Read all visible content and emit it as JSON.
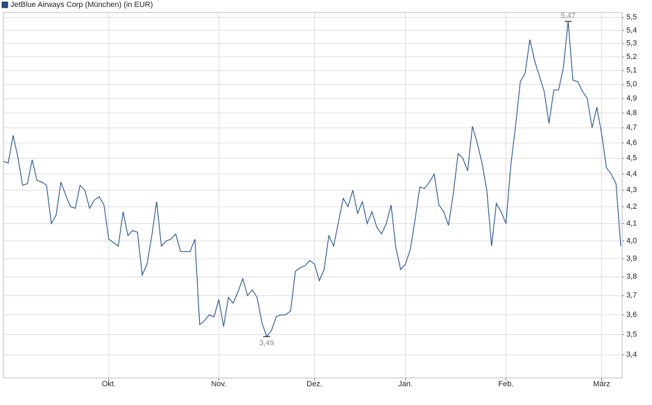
{
  "chart_data": {
    "type": "line",
    "categories": [
      null,
      null,
      null,
      null,
      null,
      null,
      null,
      null,
      null,
      null,
      null,
      null,
      null,
      null,
      null,
      null,
      null,
      null,
      null,
      null,
      null,
      null,
      "Okt.",
      null,
      null,
      null,
      null,
      null,
      null,
      null,
      null,
      null,
      null,
      null,
      null,
      null,
      null,
      null,
      null,
      null,
      null,
      null,
      null,
      null,
      null,
      "Nov.",
      null,
      null,
      null,
      null,
      null,
      null,
      null,
      null,
      null,
      null,
      null,
      null,
      null,
      null,
      null,
      null,
      null,
      null,
      null,
      "Dez.",
      null,
      null,
      null,
      null,
      null,
      null,
      null,
      null,
      null,
      null,
      null,
      null,
      null,
      null,
      null,
      null,
      null,
      null,
      "Jan.",
      null,
      null,
      null,
      null,
      null,
      null,
      null,
      null,
      null,
      null,
      null,
      null,
      null,
      null,
      null,
      null,
      null,
      null,
      null,
      null,
      "Feb.",
      null,
      null,
      null,
      null,
      null,
      null,
      null,
      null,
      null,
      null,
      null,
      null,
      null,
      null,
      null,
      null,
      null,
      null,
      null,
      "März",
      null,
      null,
      null,
      null
    ],
    "series": [
      {
        "name": "JetBlue Airways Corp (München) (in EUR)",
        "color": "#1f4e99",
        "values": [
          4.48,
          4.47,
          4.65,
          4.51,
          4.33,
          4.34,
          4.49,
          4.36,
          4.35,
          4.33,
          4.1,
          4.15,
          4.35,
          4.27,
          4.2,
          4.19,
          4.33,
          4.3,
          4.19,
          4.24,
          4.26,
          4.21,
          4.01,
          3.99,
          3.97,
          4.17,
          4.03,
          4.06,
          4.05,
          3.81,
          3.87,
          4.03,
          4.23,
          3.97,
          4.0,
          4.01,
          4.04,
          3.94,
          3.94,
          3.94,
          4.01,
          3.55,
          3.57,
          3.6,
          3.59,
          3.68,
          3.54,
          3.69,
          3.66,
          3.72,
          3.79,
          3.7,
          3.73,
          3.69,
          3.56,
          3.49,
          3.52,
          3.59,
          3.6,
          3.6,
          3.62,
          3.83,
          3.85,
          3.86,
          3.89,
          3.87,
          3.78,
          3.84,
          4.03,
          3.97,
          4.11,
          4.25,
          4.2,
          4.3,
          4.16,
          4.23,
          4.1,
          4.17,
          4.08,
          4.04,
          4.1,
          4.21,
          3.96,
          3.84,
          3.87,
          3.95,
          4.12,
          4.32,
          4.31,
          4.35,
          4.4,
          4.21,
          4.17,
          4.09,
          4.28,
          4.53,
          4.5,
          4.42,
          4.71,
          4.6,
          4.47,
          4.3,
          3.97,
          4.22,
          4.17,
          4.1,
          4.45,
          4.71,
          5.02,
          5.08,
          5.33,
          5.17,
          5.06,
          4.95,
          4.73,
          4.96,
          4.96,
          5.12,
          5.47,
          5.03,
          5.02,
          4.95,
          4.9,
          4.7,
          4.84,
          4.66,
          4.44,
          4.4,
          4.34,
          3.97
        ],
        "value_labels": [
          null,
          null,
          null,
          null,
          null,
          null,
          null,
          null,
          null,
          null,
          null,
          null,
          null,
          null,
          null,
          null,
          null,
          null,
          null,
          null,
          null,
          null,
          null,
          null,
          null,
          null,
          null,
          null,
          null,
          null,
          null,
          null,
          null,
          null,
          null,
          null,
          null,
          null,
          null,
          null,
          null,
          null,
          null,
          null,
          null,
          null,
          null,
          null,
          null,
          null,
          null,
          null,
          null,
          null,
          null,
          "3,49",
          null,
          null,
          null,
          null,
          null,
          null,
          null,
          null,
          null,
          null,
          null,
          null,
          null,
          null,
          null,
          null,
          null,
          null,
          null,
          null,
          null,
          null,
          null,
          null,
          null,
          null,
          null,
          null,
          null,
          null,
          null,
          null,
          null,
          null,
          null,
          null,
          null,
          null,
          null,
          null,
          null,
          null,
          null,
          null,
          null,
          null,
          null,
          null,
          null,
          null,
          null,
          null,
          null,
          null,
          null,
          null,
          null,
          null,
          null,
          null,
          null,
          null,
          "5,47",
          null,
          null,
          null,
          null,
          null,
          null,
          null,
          null,
          null,
          null,
          null
        ]
      }
    ],
    "ylim": [
      3.29,
      5.54
    ],
    "log_scale": true,
    "grid": true,
    "legend": "top-left",
    "yticks": [
      {
        "value": 3.4,
        "label": "3,4"
      },
      {
        "value": 3.5,
        "label": "3,5"
      },
      {
        "value": 3.6,
        "label": "3,6"
      },
      {
        "value": 3.7,
        "label": "3,7"
      },
      {
        "value": 3.8,
        "label": "3,8"
      },
      {
        "value": 3.9,
        "label": "3,9"
      },
      {
        "value": 4.0,
        "label": "4,0"
      },
      {
        "value": 4.1,
        "label": "4,1"
      },
      {
        "value": 4.2,
        "label": "4,2"
      },
      {
        "value": 4.3,
        "label": "4,3"
      },
      {
        "value": 4.4,
        "label": "4,4"
      },
      {
        "value": 4.5,
        "label": "4,5"
      },
      {
        "value": 4.6,
        "label": "4,6"
      },
      {
        "value": 4.7,
        "label": "4,7"
      },
      {
        "value": 4.8,
        "label": "4,8"
      },
      {
        "value": 4.9,
        "label": "4,9"
      },
      {
        "value": 5.0,
        "label": "5,0"
      },
      {
        "value": 5.1,
        "label": "5,1"
      },
      {
        "value": 5.2,
        "label": "5,2"
      },
      {
        "value": 5.3,
        "label": "5,3"
      },
      {
        "value": 5.4,
        "label": "5,4"
      },
      {
        "value": 5.5,
        "label": "5,5"
      }
    ]
  }
}
